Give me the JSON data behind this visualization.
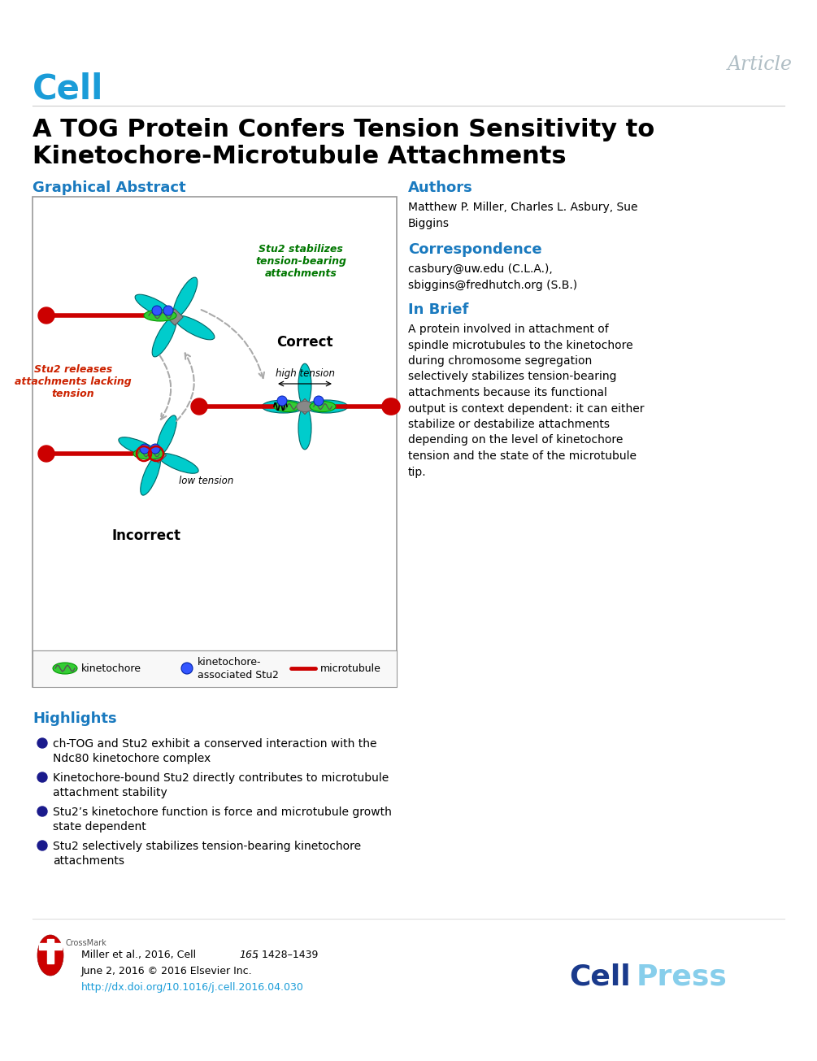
{
  "bg_color": "#ffffff",
  "article_color": "#b0bec5",
  "cell_logo_color": "#1a9cd8",
  "title_color": "#000000",
  "section_color": "#1a7abf",
  "highlights_color": "#1a7abf",
  "authors_text": "Matthew P. Miller, Charles L. Asbury, Sue\nBiggins",
  "correspondence_text": "casbury@uw.edu (C.L.A.),\nsbiggins@fredhutch.org (S.B.)",
  "inbrief_text": "A protein involved in attachment of\nspindle microtubules to the kinetochore\nduring chromosome segregation\nselectively stabilizes tension-bearing\nattachments because its functional\noutput is context dependent: it can either\nstabilize or destabilize attachments\ndepending on the level of kinetochore\ntension and the state of the microtubule\ntip.",
  "highlights": [
    "ch-TOG and Stu2 exhibit a conserved interaction with the\nNdc80 kinetochore complex",
    "Kinetochore-bound Stu2 directly contributes to microtubule\nattachment stability",
    "Stu2’s kinetochore function is force and microtubule growth\nstate dependent",
    "Stu2 selectively stabilizes tension-bearing kinetochore\nattachments"
  ],
  "footer_url": "http://dx.doi.org/10.1016/j.cell.2016.04.030",
  "stu2_releases_color": "#cc2200",
  "stu2_stabilizes_color": "#007700",
  "microtubule_color": "#cc0000",
  "chromosome_color": "#00cccc",
  "kinetochore_color": "#33cc33",
  "blue_dot_color": "#3355ff",
  "gray_center_color": "#888888"
}
